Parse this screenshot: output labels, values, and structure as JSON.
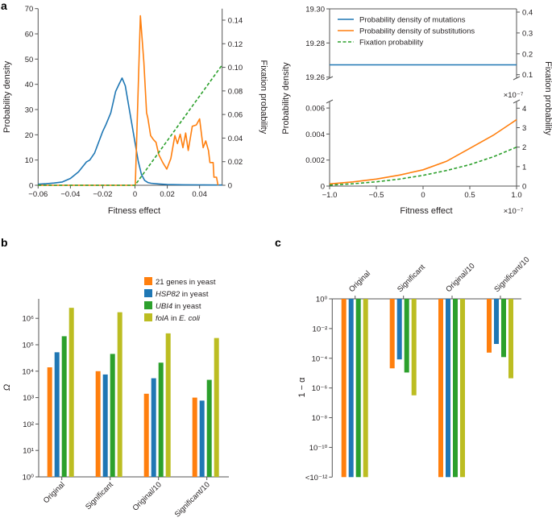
{
  "colors": {
    "orange": "#ff7f0e",
    "blue": "#1f77b4",
    "green": "#2ca02c",
    "olive": "#bcbd22",
    "axis": "#555555",
    "text": "#231f20"
  },
  "panel_labels": {
    "a": "a",
    "b": "b",
    "c": "c"
  },
  "chart_data": [
    {
      "id": "a-left",
      "type": "line",
      "title": "",
      "xlabel": "Fitness effect",
      "ylabel": "Probability density",
      "ylabel_right": "Fixation probability",
      "xlim": [
        -0.06,
        0.054
      ],
      "ylim": [
        0,
        70
      ],
      "ylim_right": [
        0,
        0.14
      ],
      "xticks": [
        -0.06,
        -0.04,
        -0.02,
        0,
        0.02,
        0.04
      ],
      "xtick_labels": [
        "−0.06",
        "−0.04",
        "−0.02",
        "0",
        "0.02",
        "0.04"
      ],
      "yticks": [
        0,
        10,
        20,
        30,
        40,
        50,
        60,
        70
      ],
      "ytick_labels": [
        "0",
        "10",
        "20",
        "30",
        "40",
        "50",
        "60",
        "70"
      ],
      "yticks_right": [
        0,
        0.02,
        0.04,
        0.06,
        0.08,
        0.1,
        0.12,
        0.14
      ],
      "ytick_labels_right": [
        "0",
        "0.02",
        "0.04",
        "0.06",
        "0.08",
        "0.10",
        "0.12",
        "0.14"
      ],
      "grid": false,
      "series": [
        {
          "name": "Probability density of mutations",
          "color": "blue",
          "axis": "left",
          "x": [
            -0.06,
            -0.055,
            -0.05,
            -0.045,
            -0.04,
            -0.035,
            -0.03,
            -0.028,
            -0.025,
            -0.02,
            -0.018,
            -0.015,
            -0.012,
            -0.01,
            -0.008,
            -0.006,
            -0.004,
            -0.002,
            0,
            0.002,
            0.004,
            0.006,
            0.008,
            0.01,
            0.015,
            0.02,
            0.03,
            0.04,
            0.05,
            0.054
          ],
          "y": [
            0.4,
            0.6,
            0.9,
            1.3,
            2.7,
            5.3,
            9.3,
            10.0,
            12.8,
            21.3,
            24.0,
            28.7,
            37.2,
            39.9,
            42.5,
            39.4,
            31.9,
            24.5,
            17.0,
            9.6,
            4.3,
            1.9,
            1.1,
            0.8,
            0.5,
            0.3,
            0.2,
            0.15,
            0.1,
            0.1
          ]
        },
        {
          "name": "Probability density of substitutions",
          "color": "orange",
          "axis": "left",
          "x": [
            -0.06,
            -0.0001,
            0.0002,
            0.00335,
            0.0055,
            0.0072,
            0.008,
            0.0097,
            0.0114,
            0.013,
            0.0147,
            0.0172,
            0.0197,
            0.0222,
            0.0247,
            0.0263,
            0.028,
            0.0297,
            0.0314,
            0.033,
            0.0355,
            0.038,
            0.04,
            0.0422,
            0.0438,
            0.0455,
            0.0464,
            0.0484,
            0.0489,
            0.0505,
            0.0514
          ],
          "y": [
            0,
            0,
            0,
            67.2,
            48.9,
            28.7,
            26.6,
            19.7,
            18.1,
            17.0,
            12.2,
            9.0,
            6.4,
            10.6,
            19.7,
            16.5,
            20.2,
            14.9,
            20.7,
            13.8,
            23.4,
            23.9,
            26.3,
            14.9,
            17.6,
            13.8,
            9.0,
            9.0,
            3.2,
            3.2,
            0
          ]
        },
        {
          "name": "Fixation probability",
          "color": "green",
          "dashed": true,
          "axis": "right",
          "x": [
            -0.06,
            0,
            0.054
          ],
          "y": [
            0,
            0,
            0.102
          ]
        }
      ]
    },
    {
      "id": "a-right",
      "type": "line",
      "title": "",
      "xlabel": "Fitness effect",
      "xscale_label": "×10⁻⁷",
      "ylabel": "Probability density",
      "ylabel_right": "Fixation probability",
      "xlim": [
        -1.0,
        1.0
      ],
      "xticks": [
        -1.0,
        -0.5,
        0,
        0.5,
        1.0
      ],
      "xtick_labels": [
        "−1.0",
        "−0.5",
        "0",
        "0.5",
        "1.0"
      ],
      "broken_axis": true,
      "upper": {
        "ylim": [
          19.25,
          19.3
        ],
        "yticks": [
          19.26,
          19.28,
          19.3
        ],
        "ytick_labels": [
          "19.26",
          "19.28",
          "19.30"
        ],
        "ylim_right": [
          0.05,
          0.42
        ],
        "yticks_right": [
          0.1,
          0.2,
          0.3,
          0.4
        ],
        "ytick_labels_right": [
          "0.1",
          "0.2",
          "0.3",
          "0.4"
        ]
      },
      "lower": {
        "ylim": [
          0,
          0.006
        ],
        "yticks": [
          0,
          0.002,
          0.004,
          0.006
        ],
        "ytick_labels": [
          "0",
          "0.002",
          "0.004",
          "0.006"
        ],
        "ylim_right": [
          0,
          4
        ],
        "yscale_label_right": "×10⁻⁷",
        "yticks_right": [
          0,
          1,
          2,
          3,
          4
        ],
        "ytick_labels_right": [
          "0",
          "1",
          "2",
          "3",
          "4"
        ]
      },
      "legend": {
        "position": "top",
        "entries": [
          "Probability density of mutations",
          "Probability density of substitutions",
          "Fixation probability"
        ]
      },
      "grid": false,
      "series": [
        {
          "name": "Probability density of mutations",
          "color": "blue",
          "segment": "upper",
          "x": [
            -1.0,
            1.0
          ],
          "y": [
            19.2672,
            19.2672
          ]
        },
        {
          "name": "Probability density of substitutions",
          "color": "orange",
          "segment": "lower",
          "x": [
            -1.0,
            -0.75,
            -0.5,
            -0.25,
            0,
            0.25,
            0.5,
            0.75,
            1.0
          ],
          "y": [
            0.00017,
            0.00032,
            0.00054,
            0.00085,
            0.00125,
            0.0019,
            0.0029,
            0.0039,
            0.0051
          ]
        },
        {
          "name": "Fixation probability",
          "color": "green",
          "dashed": true,
          "segment": "lower",
          "axis": "right",
          "x": [
            -1.0,
            -0.75,
            -0.5,
            -0.25,
            0,
            0.25,
            0.5,
            0.75,
            1.0
          ],
          "y": [
            0.05,
            0.12,
            0.22,
            0.36,
            0.55,
            0.8,
            1.1,
            1.5,
            2.0
          ]
        }
      ]
    },
    {
      "id": "b",
      "type": "bar",
      "title": "",
      "xlabel": "",
      "ylabel": "Ω",
      "yscale": "log",
      "ylim": [
        1,
        10000000
      ],
      "yticks": [
        0,
        1,
        2,
        3,
        4,
        5,
        6
      ],
      "ytick_labels": [
        "10⁰",
        "10¹",
        "10²",
        "10³",
        "10⁴",
        "10⁵",
        "10⁶"
      ],
      "categories": [
        "Original",
        "Significant",
        "Original/10",
        "Significant/10"
      ],
      "legend": {
        "position": "top-right"
      },
      "grid": false,
      "series": [
        {
          "name": "21 genes in yeast",
          "name_italic": "",
          "name_rest": "21 genes in yeast",
          "color": "orange",
          "values": [
            14000,
            10000,
            1400,
            1000
          ]
        },
        {
          "name": "HSP82 in yeast",
          "name_italic": "HSP82",
          "name_rest": " in yeast",
          "color": "blue",
          "values": [
            52000,
            7500,
            5400,
            770
          ]
        },
        {
          "name": "UBI4 in yeast",
          "name_italic": "UBI4",
          "name_rest": " in yeast",
          "color": "green",
          "values": [
            210000,
            45000,
            21000,
            4700
          ]
        },
        {
          "name": "folA in E. coli",
          "name_italic": "folA",
          "name_rest": " in ",
          "name_italic2": "E. coli",
          "color": "olive",
          "values": [
            2500000,
            1700000,
            270000,
            180000
          ]
        }
      ]
    },
    {
      "id": "c",
      "type": "bar",
      "title": "",
      "xlabel": "",
      "ylabel": "1 − α",
      "yscale": "log",
      "ylim": [
        1e-12,
        1
      ],
      "yticks": [
        0,
        -2,
        -4,
        -6,
        -8,
        -10,
        -12
      ],
      "ytick_labels": [
        "10⁰",
        "10⁻²",
        "10⁻⁴",
        "10⁻⁶",
        "10⁻⁸",
        "10⁻¹⁰",
        "<10⁻¹²"
      ],
      "categories": [
        "Original",
        "Significant",
        "Original/10",
        "Significant/10"
      ],
      "category_axis_position": "top",
      "grid": false,
      "series": [
        {
          "name": "21 genes in yeast",
          "color": "orange",
          "values": [
            1e-12,
            2.1e-05,
            1e-12,
            0.00024
          ]
        },
        {
          "name": "HSP82 in yeast",
          "color": "blue",
          "values": [
            1e-12,
            8.4e-05,
            1e-12,
            0.00092
          ]
        },
        {
          "name": "UBI4 in yeast",
          "color": "green",
          "values": [
            1e-12,
            1.1e-05,
            1e-12,
            0.00012
          ]
        },
        {
          "name": "folA in E. coli",
          "color": "olive",
          "values": [
            1e-12,
            3.2e-07,
            1e-12,
            4.5e-06
          ]
        }
      ]
    }
  ]
}
